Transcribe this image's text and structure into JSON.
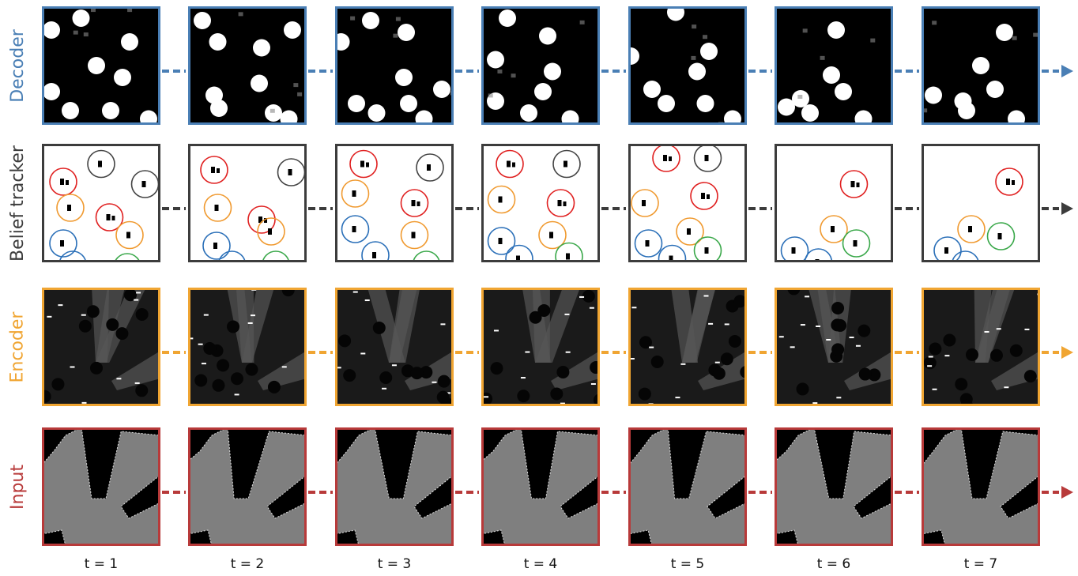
{
  "rows": [
    {
      "key": "decoder",
      "label": "Decoder",
      "color": "#4a7fb5"
    },
    {
      "key": "belief",
      "label": "Belief tracker",
      "color": "#3c3c3c"
    },
    {
      "key": "encoder",
      "label": "Encoder",
      "color": "#f0a532"
    },
    {
      "key": "input",
      "label": "Input",
      "color": "#b83a3a"
    }
  ],
  "time_steps": [
    "t = 1",
    "t = 2",
    "t = 3",
    "t = 4",
    "t = 5",
    "t = 6",
    "t = 7"
  ],
  "circle_colors": {
    "red": "#e02020",
    "orange": "#f09a30",
    "blue": "#2a6fb8",
    "green": "#3aa84a",
    "gray": "#444444"
  }
}
